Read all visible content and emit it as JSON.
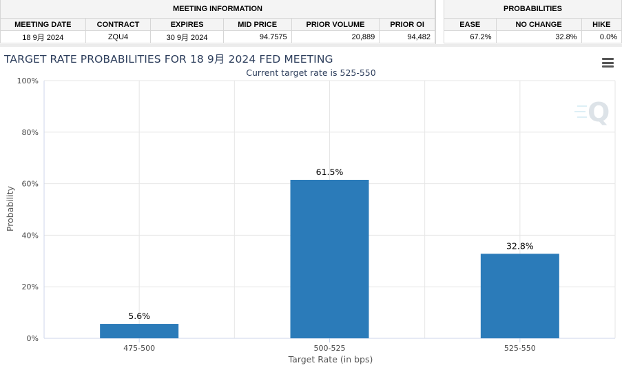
{
  "meeting_info": {
    "group_label": "MEETING INFORMATION",
    "headers": [
      "MEETING DATE",
      "CONTRACT",
      "EXPIRES",
      "MID PRICE",
      "PRIOR VOLUME",
      "PRIOR OI"
    ],
    "row": {
      "meeting_date": "18 9月 2024",
      "contract": "ZQU4",
      "expires": "30 9月 2024",
      "mid_price": "94.7575",
      "prior_volume": "20,889",
      "prior_oi": "94,482"
    }
  },
  "probabilities": {
    "group_label": "PROBABILITIES",
    "headers": [
      "EASE",
      "NO CHANGE",
      "HIKE"
    ],
    "row": {
      "ease": "67.2%",
      "no_change": "32.8%",
      "hike": "0.0%"
    }
  },
  "icons": {
    "menu": "hamburger-menu-icon",
    "watermark": "q-logo-icon"
  },
  "colors": {
    "bar": "#2b7bb9",
    "title": "#2d3e5c"
  },
  "chart_data": {
    "type": "bar",
    "title": "TARGET RATE PROBABILITIES FOR 18 9月 2024 FED MEETING",
    "subtitle": "Current target rate is 525-550",
    "xlabel": "Target Rate (in bps)",
    "ylabel": "Probability",
    "categories": [
      "475-500",
      "500-525",
      "525-550"
    ],
    "values": [
      5.6,
      61.5,
      32.8
    ],
    "data_labels": [
      "5.6%",
      "61.5%",
      "32.8%"
    ],
    "ylim": [
      0,
      100
    ],
    "yticks": [
      0,
      20,
      40,
      60,
      80,
      100
    ],
    "ytick_labels": [
      "0%",
      "20%",
      "40%",
      "60%",
      "80%",
      "100%"
    ],
    "grid": true
  }
}
